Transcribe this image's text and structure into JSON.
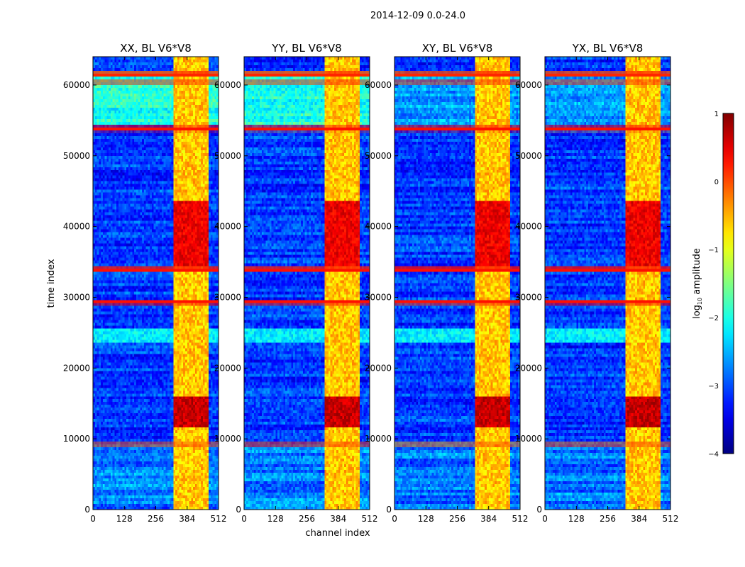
{
  "suptitle": "2014-12-09 0.0-24.0",
  "chart_data": {
    "type": "heatmap",
    "x_axis": {
      "label": "channel index",
      "range": [
        0,
        512
      ],
      "ticks": [
        0,
        128,
        256,
        384,
        512
      ],
      "tick_labels": [
        "0",
        "128",
        "256",
        "384",
        "512"
      ]
    },
    "y_axis": {
      "label": "time index",
      "range": [
        0,
        64000
      ],
      "ticks": [
        0,
        10000,
        20000,
        30000,
        40000,
        50000,
        60000
      ],
      "tick_labels": [
        "0",
        "10000",
        "20000",
        "30000",
        "40000",
        "50000",
        "60000"
      ]
    },
    "panels": [
      {
        "title": "XX, BL V6*V8",
        "product": "XX"
      },
      {
        "title": "YY, BL V6*V8",
        "product": "YY"
      },
      {
        "title": "XY, BL V6*V8",
        "product": "XY"
      },
      {
        "title": "YX, BL V6*V8",
        "product": "YX"
      }
    ],
    "colorbar": {
      "label": "log10 amplitude",
      "range": [
        -4,
        1
      ],
      "ticks": [
        1,
        0,
        -1,
        -2,
        -3,
        -4
      ],
      "tick_labels": [
        "1",
        "0",
        "−1",
        "−2",
        "−3",
        "−4"
      ],
      "colormap": "jet"
    },
    "rfi_band_channels": [
      325,
      475
    ],
    "strong_time_rfi": [
      {
        "time_range": [
          53500,
          54200
        ],
        "level": 0.3
      },
      {
        "time_range": [
          33600,
          34300
        ],
        "level": 0.3
      },
      {
        "time_range": [
          29000,
          29600
        ],
        "level": 0.3
      },
      {
        "time_range": [
          60200,
          60600
        ],
        "level": 0.2
      },
      {
        "time_range": [
          61200,
          61900
        ],
        "level": 0.2
      },
      {
        "time_range": [
          9000,
          9400
        ],
        "level": 0.1
      }
    ]
  }
}
